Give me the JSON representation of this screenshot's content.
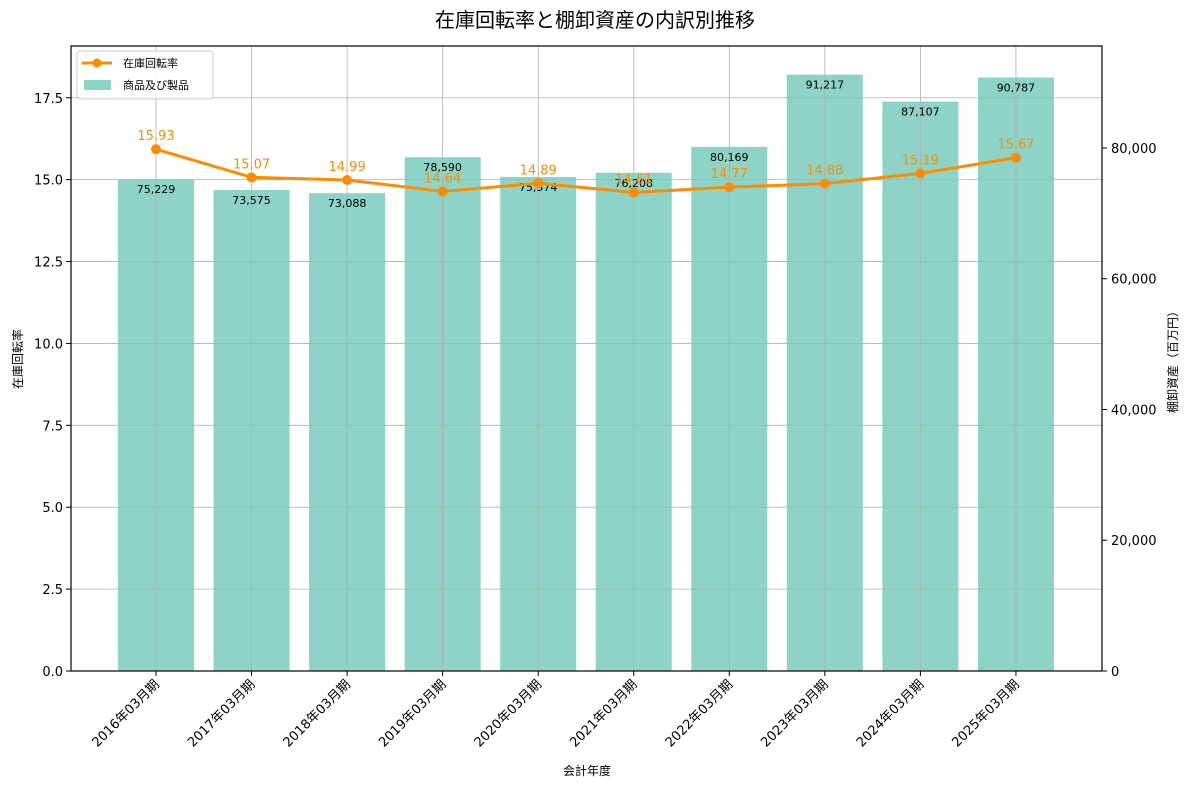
{
  "chart_data": {
    "type": "bar",
    "title": "在庫回転率と棚卸資産の内訳別推移",
    "xlabel": "会計年度",
    "ylabel_left": "在庫回転率",
    "ylabel_right": "棚卸資産（百万円）",
    "categories": [
      "2016年03月期",
      "2017年03月期",
      "2018年03月期",
      "2019年03月期",
      "2020年03月期",
      "2021年03月期",
      "2022年03月期",
      "2023年03月期",
      "2024年03月期",
      "2025年03月期"
    ],
    "series": [
      {
        "name": "商品及び製品",
        "type": "bar",
        "axis": "right",
        "color": "#8dd3c7",
        "values": [
          75229,
          73575,
          73088,
          78590,
          75574,
          76208,
          80169,
          91217,
          87107,
          90787
        ],
        "labels": [
          "75,229",
          "73,575",
          "73,088",
          "78,590",
          "75,574",
          "76,208",
          "80,169",
          "91,217",
          "87,107",
          "90,787"
        ]
      },
      {
        "name": "在庫回転率",
        "type": "line",
        "axis": "left",
        "color": "#ff8c00",
        "values": [
          15.93,
          15.07,
          14.99,
          14.64,
          14.89,
          14.61,
          14.77,
          14.88,
          15.19,
          15.67
        ],
        "labels": [
          "15.93",
          "15.07",
          "14.99",
          "14.64",
          "14.89",
          "14.61",
          "14.77",
          "14.88",
          "15.19",
          "15.67"
        ]
      }
    ],
    "ylim_left": [
      0,
      19.08
    ],
    "ylim_right": [
      0,
      95600
    ],
    "yticks_left": [
      "0.0",
      "2.5",
      "5.0",
      "7.5",
      "10.0",
      "12.5",
      "15.0",
      "17.5"
    ],
    "yticks_right": [
      "0",
      "20,000",
      "40,000",
      "60,000",
      "80,000"
    ],
    "grid": true,
    "legend_position": "upper left",
    "legend": [
      {
        "label": "在庫回転率",
        "kind": "line",
        "color": "#ff8c00"
      },
      {
        "label": "商品及び製品",
        "kind": "bar",
        "color": "#8dd3c7"
      }
    ]
  }
}
